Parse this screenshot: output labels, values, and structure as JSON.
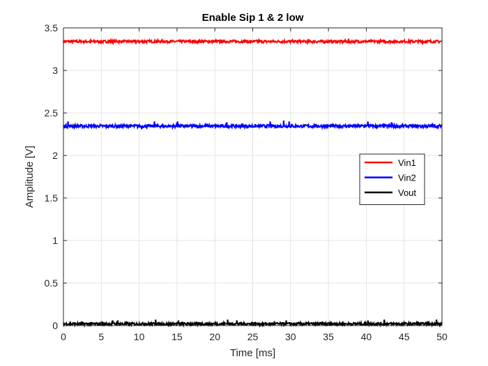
{
  "chart_data": {
    "type": "line",
    "title": "Enable Sip 1 & 2 low",
    "xlabel": "Time [ms]",
    "ylabel": "Amplitude [V]",
    "xlim": [
      0,
      50
    ],
    "ylim": [
      0,
      3.5
    ],
    "xticks": [
      0,
      5,
      10,
      15,
      20,
      25,
      30,
      35,
      40,
      45,
      50
    ],
    "yticks": [
      0,
      0.5,
      1,
      1.5,
      2,
      2.5,
      3,
      3.5
    ],
    "xtick_labels": [
      "0",
      "5",
      "10",
      "15",
      "20",
      "25",
      "30",
      "35",
      "40",
      "45",
      "50"
    ],
    "ytick_labels": [
      "0",
      "0.5",
      "1",
      "1.5",
      "2",
      "2.5",
      "3",
      "3.5"
    ],
    "grid": true,
    "legend_position": "right-middle",
    "series": [
      {
        "name": "Vin1",
        "color": "#ff0000",
        "base": 3.34,
        "noise": 0.03,
        "spikes": []
      },
      {
        "name": "Vin2",
        "color": "#0000ff",
        "base": 2.345,
        "noise": 0.035,
        "spikes": [
          {
            "x": 0.6,
            "y": 2.4
          },
          {
            "x": 12.0,
            "y": 2.4
          },
          {
            "x": 15.1,
            "y": 2.4
          },
          {
            "x": 21.6,
            "y": 2.39
          },
          {
            "x": 27.3,
            "y": 2.4
          },
          {
            "x": 29.1,
            "y": 2.41
          },
          {
            "x": 29.8,
            "y": 2.4
          },
          {
            "x": 40.2,
            "y": 2.4
          },
          {
            "x": 43.3,
            "y": 2.39
          }
        ]
      },
      {
        "name": "Vout",
        "color": "#000000",
        "base": 0.02,
        "noise": 0.03,
        "spikes": [
          {
            "x": 6.5,
            "y": 0.06
          },
          {
            "x": 7.2,
            "y": 0.06
          },
          {
            "x": 12.2,
            "y": 0.07
          },
          {
            "x": 15.2,
            "y": 0.06
          },
          {
            "x": 21.7,
            "y": 0.07
          },
          {
            "x": 22.9,
            "y": 0.06
          },
          {
            "x": 29.4,
            "y": 0.06
          },
          {
            "x": 40.2,
            "y": 0.06
          },
          {
            "x": 42.4,
            "y": 0.07
          },
          {
            "x": 49.3,
            "y": 0.07
          }
        ]
      }
    ]
  }
}
